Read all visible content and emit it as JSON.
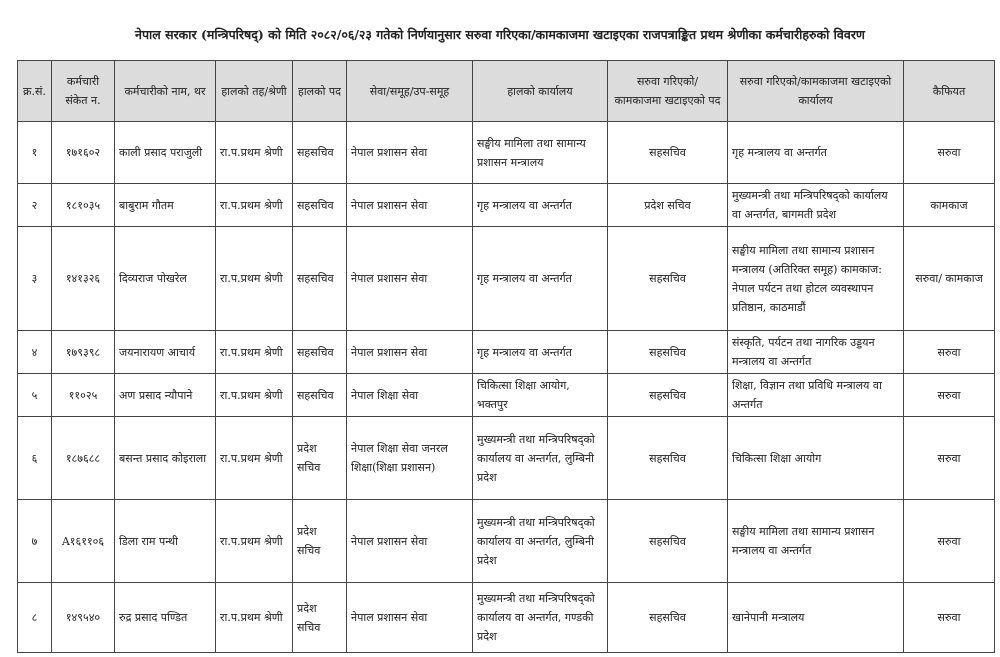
{
  "title": "नेपाल सरकार (मन्त्रिपरिषद्) को मिति २०८२/०६/२३ गतेको निर्णयानुसार सरुवा गरिएका/कामकाजमा खटाइएका राजपत्राङ्कित प्रथम श्रेणीका कर्मचारीहरुको विवरण",
  "headers": [
    "क्र.सं.",
    "कर्मचारी संकेत न.",
    "कर्मचारीको नाम, थर",
    "हालको तह/श्रेणी",
    "हालको पद",
    "सेवा/समूह/उप-समूह",
    "हालको कार्यालय",
    "सरुवा गरिएको/ कामकाजमा खटाइएको पद",
    "सरुवा गरिएको/कामकाजमा खटाइएको कार्यालय",
    "कैफियत"
  ],
  "rows": [
    [
      "१",
      "१७१६०२",
      "काली प्रसाद पराजुली",
      "रा.प.प्रथम श्रेणी",
      "सहसचिव",
      "नेपाल प्रशासन सेवा",
      "सङ्घीय मामिला तथा सामान्य प्रशासन मन्त्रालय",
      "सहसचिव",
      "गृह मन्त्रालय वा अन्तर्गत",
      "सरुवा"
    ],
    [
      "२",
      "१८१०३५",
      "बाबुराम गौतम",
      "रा.प.प्रथम श्रेणी",
      "सहसचिव",
      "नेपाल प्रशासन सेवा",
      "गृह मन्त्रालय वा अन्तर्गत",
      "प्रदेश सचिव",
      "मुख्यमन्त्री तथा मन्त्रिपरिषद्को कार्यालय वा अन्तर्गत, बागमती प्रदेश",
      "कामकाज"
    ],
    [
      "३",
      "१४१३२६",
      "दिव्यराज पोखरेल",
      "रा.प.प्रथम श्रेणी",
      "सहसचिव",
      "नेपाल प्रशासन सेवा",
      "गृह मन्त्रालय वा अन्तर्गत",
      "सहसचिव",
      "सङ्घीय मामिला तथा सामान्य प्रशासन मन्त्रालय (अतिरिक्त समूह) कामकाज: नेपाल पर्यटन तथा होटल व्यवस्थापन प्रतिष्ठान, काठमाडौं",
      "सरुवा/ कामकाज"
    ],
    [
      "४",
      "१७९३९८",
      "जयनारायण आचार्य",
      "रा.प.प्रथम श्रेणी",
      "सहसचिव",
      "नेपाल प्रशासन सेवा",
      "गृह मन्त्रालय वा अन्तर्गत",
      "सहसचिव",
      "संस्कृति, पर्यटन तथा नागरिक उड्डयन मन्त्रालय वा अन्तर्गत",
      "सरुवा"
    ],
    [
      "५",
      "११०२५",
      "अण प्रसाद न्यौपाने",
      "रा.प.प्रथम श्रेणी",
      "सहसचिव",
      "नेपाल शिक्षा सेवा",
      "चिकित्सा शिक्षा आयोग, भक्तपुर",
      "सहसचिव",
      "शिक्षा, विज्ञान तथा प्रविधि मन्त्रालय वा अन्तर्गत",
      "सरुवा"
    ],
    [
      "६",
      "१८७६८८",
      "बसन्त प्रसाद कोइराला",
      "रा.प.प्रथम श्रेणी",
      "प्रदेश सचिव",
      "नेपाल शिक्षा सेवा जनरल शिक्षा(शिक्षा प्रशासन)",
      "मुख्यमन्त्री तथा मन्त्रिपरिषद्को कार्यालय वा अन्तर्गत, लुम्बिनी प्रदेश",
      "सहसचिव",
      "चिकित्सा शिक्षा आयोग",
      "सरुवा"
    ],
    [
      "७",
      "A१६११०६",
      "डिला राम पन्थी",
      "रा.प.प्रथम श्रेणी",
      "प्रदेश सचिव",
      "नेपाल प्रशासन सेवा",
      "मुख्यमन्त्री तथा मन्त्रिपरिषद्को कार्यालय वा अन्तर्गत, लुम्बिनी प्रदेश",
      "सहसचिव",
      "सङ्घीय मामिला तथा सामान्य प्रशासन मन्त्रालय वा अन्तर्गत",
      "सरुवा"
    ],
    [
      "८",
      "१४९५४०",
      "रुद्र प्रसाद पण्डित",
      "रा.प.प्रथम श्रेणी",
      "प्रदेश सचिव",
      "नेपाल प्रशासन सेवा",
      "मुख्यमन्त्री तथा मन्त्रिपरिषद्को कार्यालय वा अन्तर्गत, गण्डकी प्रदेश",
      "सहसचिव",
      "खानेपानी मन्त्रालय",
      "सरुवा"
    ]
  ]
}
